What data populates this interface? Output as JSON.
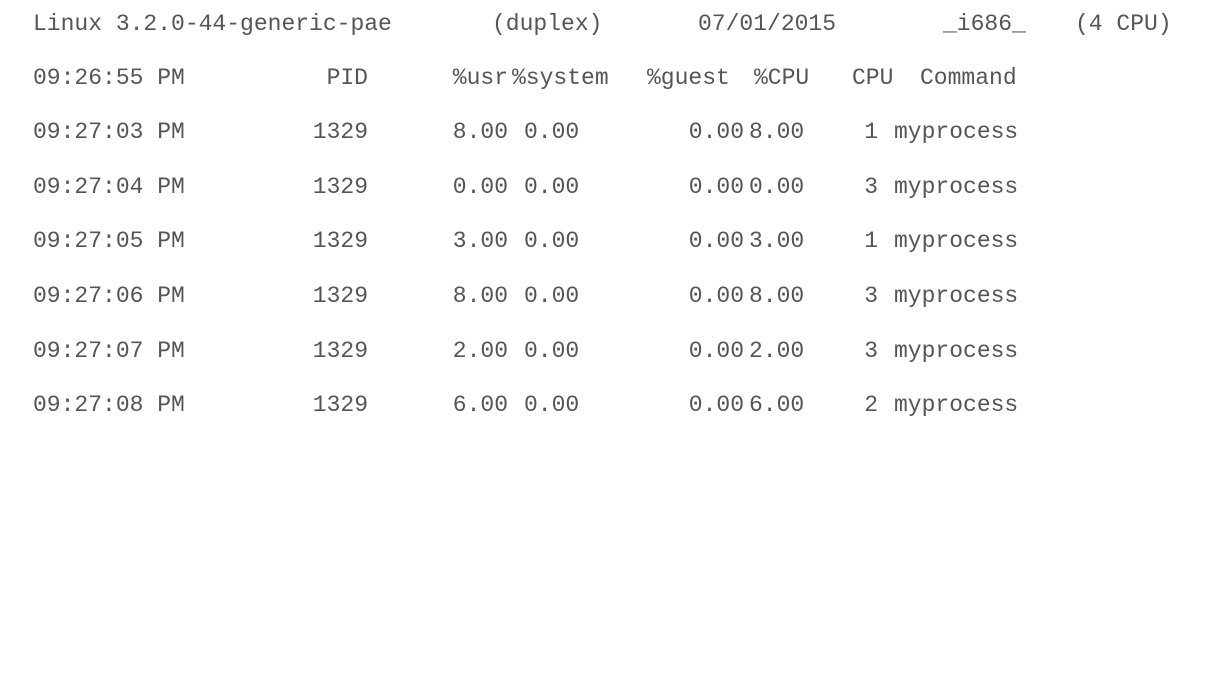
{
  "header": {
    "kernel": "Linux 3.2.0-44-generic-pae",
    "host": "(duplex)",
    "date": "07/01/2015",
    "arch": "_i686_",
    "cpus": "(4 CPU)"
  },
  "columns": {
    "time": "09:26:55 PM",
    "pid": "PID",
    "usr": "%usr",
    "system": "%system",
    "guest": "%guest",
    "cpu_pct": "%CPU",
    "cpu": "CPU",
    "command": "Command"
  },
  "rows": [
    {
      "time": "09:27:03 PM",
      "pid": "1329",
      "usr": "8.00",
      "system": "0.00",
      "guest": "0.00",
      "cpu_pct": "8.00",
      "cpu": "1",
      "command": "myprocess"
    },
    {
      "time": "09:27:04 PM",
      "pid": "1329",
      "usr": "0.00",
      "system": "0.00",
      "guest": "0.00",
      "cpu_pct": "0.00",
      "cpu": "3",
      "command": "myprocess"
    },
    {
      "time": "09:27:05 PM",
      "pid": "1329",
      "usr": "3.00",
      "system": "0.00",
      "guest": "0.00",
      "cpu_pct": "3.00",
      "cpu": "1",
      "command": "myprocess"
    },
    {
      "time": "09:27:06 PM",
      "pid": "1329",
      "usr": "8.00",
      "system": "0.00",
      "guest": "0.00",
      "cpu_pct": "8.00",
      "cpu": "3",
      "command": "myprocess"
    },
    {
      "time": "09:27:07 PM",
      "pid": "1329",
      "usr": "2.00",
      "system": "0.00",
      "guest": "0.00",
      "cpu_pct": "2.00",
      "cpu": "3",
      "command": "myprocess"
    },
    {
      "time": "09:27:08 PM",
      "pid": "1329",
      "usr": "6.00",
      "system": "0.00",
      "guest": "0.00",
      "cpu_pct": "6.00",
      "cpu": "2",
      "command": "myprocess"
    }
  ]
}
